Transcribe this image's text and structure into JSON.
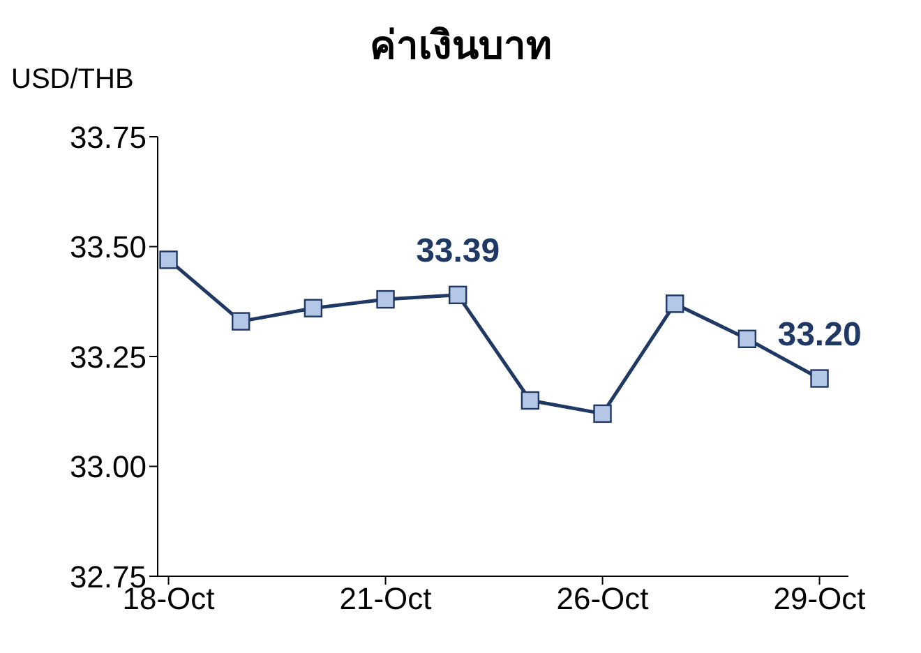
{
  "chart_data": {
    "type": "line",
    "title": "ค่าเงินบาท",
    "ylabel": "USD/THB",
    "categories": [
      "18-Oct",
      null,
      null,
      "21-Oct",
      null,
      null,
      "26-Oct",
      null,
      null,
      "29-Oct"
    ],
    "series": [
      {
        "color": "#1f3864",
        "values": [
          33.47,
          33.33,
          33.36,
          33.38,
          33.39,
          33.15,
          33.12,
          33.37,
          33.29,
          33.2
        ]
      }
    ],
    "ylim": [
      32.75,
      33.75
    ],
    "yticks": [
      {
        "value": 32.75,
        "label": "32.75"
      },
      {
        "value": 33,
        "label": "33.00"
      },
      {
        "value": 33.25,
        "label": "33.25"
      },
      {
        "value": 33.5,
        "label": "33.50"
      },
      {
        "value": 33.75,
        "label": "33.75"
      }
    ],
    "annotations": [
      {
        "text": "33.39",
        "y": 33.39
      },
      {
        "text": "33.20",
        "x": "29-Oct",
        "y": 33.2
      }
    ],
    "marker": "square",
    "line_style": "solid",
    "grid": false,
    "legend": false
  }
}
